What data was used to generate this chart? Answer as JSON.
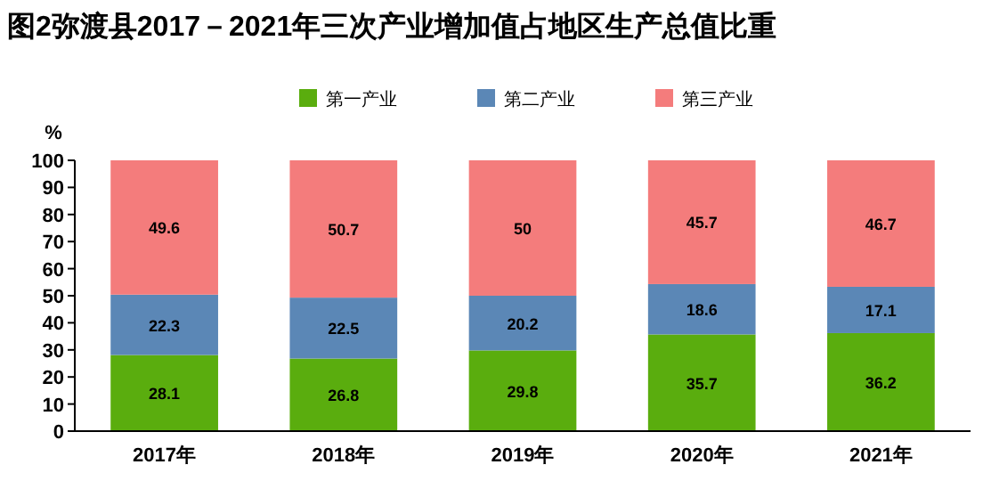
{
  "chart_data": {
    "type": "bar",
    "title": "图2弥渡县2017－2021年三次产业增加值占地区生产总值比重",
    "ylabel": "%",
    "categories": [
      "2017年",
      "2018年",
      "2019年",
      "2020年",
      "2021年"
    ],
    "stacked": true,
    "data_labels": true,
    "legend": "top",
    "grid": false,
    "ylim": [
      0,
      100
    ],
    "yticks": [
      0,
      10,
      20,
      30,
      40,
      50,
      60,
      70,
      80,
      90,
      100
    ],
    "series": [
      {
        "name": "第一产业",
        "color": "#5aad0e",
        "values": [
          28.1,
          26.8,
          29.8,
          35.7,
          36.2
        ]
      },
      {
        "name": "第二产业",
        "color": "#5b87b6",
        "values": [
          22.3,
          22.5,
          20.2,
          18.6,
          17.1
        ]
      },
      {
        "name": "第三产业",
        "color": "#f47c7c",
        "values": [
          49.6,
          50.7,
          50,
          45.7,
          46.7
        ]
      }
    ]
  }
}
